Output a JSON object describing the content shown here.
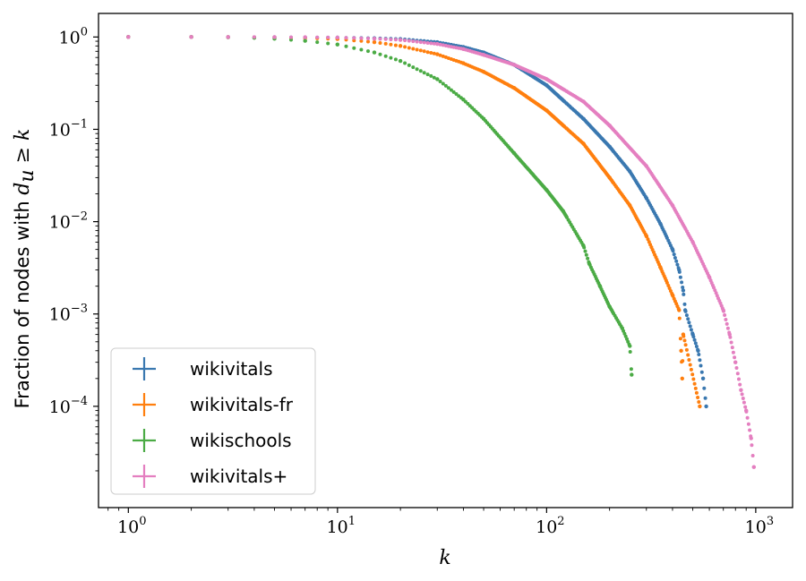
{
  "chart_data": {
    "type": "scatter",
    "title": "",
    "xlabel": "k",
    "ylabel_text": "Fraction of nodes with ",
    "ylabel_math": "d",
    "ylabel_sub": "u",
    "ylabel_rel": " ≥ k",
    "xscale": "log",
    "yscale": "log",
    "xlim": [
      0.72,
      1500
    ],
    "ylim": [
      8e-06,
      1.8
    ],
    "legend_position": "lower-left",
    "xticks": [
      {
        "base": "10",
        "exp": "0",
        "value": 1
      },
      {
        "base": "10",
        "exp": "1",
        "value": 10
      },
      {
        "base": "10",
        "exp": "2",
        "value": 100
      },
      {
        "base": "10",
        "exp": "3",
        "value": 1000
      }
    ],
    "yticks": [
      {
        "base": "10",
        "exp": "0",
        "value": 1
      },
      {
        "base": "10",
        "exp": "−1",
        "value": 0.1
      },
      {
        "base": "10",
        "exp": "−2",
        "value": 0.01
      },
      {
        "base": "10",
        "exp": "−3",
        "value": 0.001
      },
      {
        "base": "10",
        "exp": "−4",
        "value": 0.0001
      }
    ],
    "series": [
      {
        "name": "wikivitals",
        "color": "#3a78b0",
        "points": [
          [
            1,
            1
          ],
          [
            2,
            1
          ],
          [
            3,
            0.998
          ],
          [
            5,
            0.995
          ],
          [
            7,
            0.99
          ],
          [
            10,
            0.985
          ],
          [
            15,
            0.97
          ],
          [
            20,
            0.95
          ],
          [
            30,
            0.88
          ],
          [
            40,
            0.78
          ],
          [
            50,
            0.68
          ],
          [
            70,
            0.5
          ],
          [
            100,
            0.3
          ],
          [
            150,
            0.13
          ],
          [
            200,
            0.065
          ],
          [
            250,
            0.035
          ],
          [
            300,
            0.018
          ],
          [
            350,
            0.0095
          ],
          [
            400,
            0.005
          ],
          [
            430,
            0.003
          ],
          [
            450,
            0.0018
          ],
          [
            460,
            0.0011
          ],
          [
            500,
            0.0006
          ],
          [
            530,
            0.0004
          ],
          [
            560,
            0.0002
          ],
          [
            580,
            0.0001
          ]
        ]
      },
      {
        "name": "wikivitals-fr",
        "color": "#ff7f0e",
        "points": [
          [
            1,
            1
          ],
          [
            2,
            1
          ],
          [
            3,
            0.997
          ],
          [
            5,
            0.99
          ],
          [
            7,
            0.975
          ],
          [
            10,
            0.95
          ],
          [
            15,
            0.88
          ],
          [
            20,
            0.8
          ],
          [
            30,
            0.65
          ],
          [
            40,
            0.52
          ],
          [
            50,
            0.42
          ],
          [
            70,
            0.28
          ],
          [
            100,
            0.16
          ],
          [
            150,
            0.07
          ],
          [
            200,
            0.03
          ],
          [
            250,
            0.015
          ],
          [
            300,
            0.007
          ],
          [
            350,
            0.0032
          ],
          [
            400,
            0.0016
          ],
          [
            430,
            0.0011
          ],
          [
            450,
            0.0006
          ],
          [
            440,
            0.0004
          ],
          [
            445,
            0.0002
          ],
          [
            540,
            0.0001
          ]
        ]
      },
      {
        "name": "wikischools",
        "color": "#4bab45",
        "points": [
          [
            1,
            1
          ],
          [
            2,
            1
          ],
          [
            3,
            0.995
          ],
          [
            4,
            0.98
          ],
          [
            5,
            0.96
          ],
          [
            7,
            0.91
          ],
          [
            10,
            0.83
          ],
          [
            15,
            0.68
          ],
          [
            20,
            0.55
          ],
          [
            30,
            0.35
          ],
          [
            40,
            0.21
          ],
          [
            50,
            0.13
          ],
          [
            70,
            0.055
          ],
          [
            100,
            0.022
          ],
          [
            120,
            0.013
          ],
          [
            150,
            0.0055
          ],
          [
            160,
            0.0035
          ],
          [
            180,
            0.002
          ],
          [
            200,
            0.0012
          ],
          [
            230,
            0.0007
          ],
          [
            250,
            0.00045
          ],
          [
            255,
            0.00022
          ]
        ]
      },
      {
        "name": "wikivitals+",
        "color": "#e47fc0",
        "points": [
          [
            1,
            1
          ],
          [
            2,
            1
          ],
          [
            3,
            0.999
          ],
          [
            5,
            0.997
          ],
          [
            7,
            0.993
          ],
          [
            10,
            0.985
          ],
          [
            15,
            0.96
          ],
          [
            20,
            0.93
          ],
          [
            30,
            0.84
          ],
          [
            40,
            0.74
          ],
          [
            50,
            0.64
          ],
          [
            70,
            0.5
          ],
          [
            100,
            0.35
          ],
          [
            150,
            0.2
          ],
          [
            200,
            0.11
          ],
          [
            300,
            0.04
          ],
          [
            400,
            0.015
          ],
          [
            500,
            0.006
          ],
          [
            600,
            0.0025
          ],
          [
            700,
            0.0011
          ],
          [
            750,
            0.0006
          ],
          [
            800,
            0.0003
          ],
          [
            850,
            0.00015
          ],
          [
            900,
            9e-05
          ],
          [
            950,
            4.5e-05
          ],
          [
            980,
            2.2e-05
          ]
        ]
      }
    ]
  }
}
